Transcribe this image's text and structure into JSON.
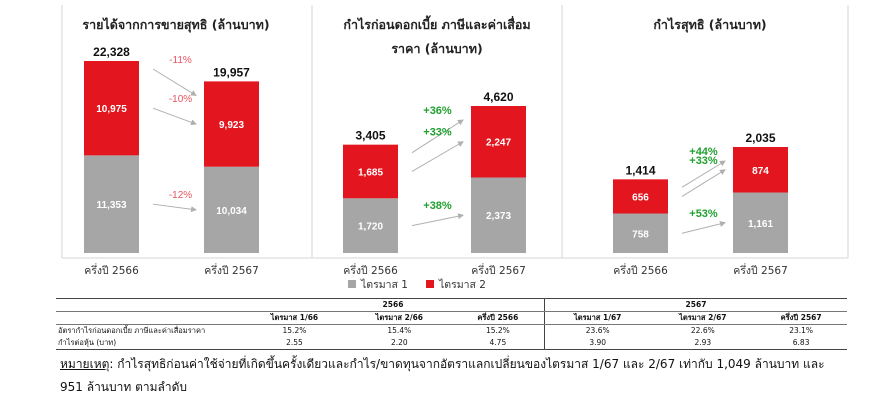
{
  "chart_data": [
    {
      "type": "bar",
      "stacked": true,
      "title": "รายได้จากการขายสุทธิ (ล้านบาท)",
      "categories": [
        "ครึ่งปี 2566",
        "ครึ่งปี 2567"
      ],
      "series": [
        {
          "name": "ไตรมาส 1",
          "values": [
            11353,
            10034
          ]
        },
        {
          "name": "ไตรมาส 2",
          "values": [
            10975,
            9923
          ]
        }
      ],
      "totals": [
        22328,
        19957
      ],
      "totals_labels": [
        "22,328",
        "19,957"
      ],
      "segment_labels": [
        [
          "11,353",
          "10,975"
        ],
        [
          "10,034",
          "9,923"
        ]
      ],
      "growth_labels": {
        "total": "-11%",
        "q2": "-10%",
        "q1": "-12%"
      },
      "ylim": [
        0,
        22328
      ]
    },
    {
      "type": "bar",
      "stacked": true,
      "title": "กำไรก่อนดอกเบี้ย ภาษีและค่าเสื่อมราคา (ล้านบาท)",
      "title_lines": [
        "กำไรก่อนดอกเบี้ย ภาษีและค่าเสื่อม",
        "ราคา (ล้านบาท)"
      ],
      "categories": [
        "ครึ่งปี 2566",
        "ครึ่งปี 2567"
      ],
      "series": [
        {
          "name": "ไตรมาส 1",
          "values": [
            1720,
            2373
          ]
        },
        {
          "name": "ไตรมาส 2",
          "values": [
            1685,
            2247
          ]
        }
      ],
      "totals": [
        3405,
        4620
      ],
      "totals_labels": [
        "3,405",
        "4,620"
      ],
      "segment_labels": [
        [
          "1,720",
          "1,685"
        ],
        [
          "2,373",
          "2,247"
        ]
      ],
      "growth_labels": {
        "total": "+36%",
        "q2": "+33%",
        "q1": "+38%"
      },
      "ylim": [
        0,
        4620
      ]
    },
    {
      "type": "bar",
      "stacked": true,
      "title": "กำไรสุทธิ (ล้านบาท)",
      "categories": [
        "ครึ่งปี 2566",
        "ครึ่งปี 2567"
      ],
      "series": [
        {
          "name": "ไตรมาส 1",
          "values": [
            758,
            1161
          ]
        },
        {
          "name": "ไตรมาส 2",
          "values": [
            656,
            874
          ]
        }
      ],
      "totals": [
        1414,
        2035
      ],
      "totals_labels": [
        "1,414",
        "2,035"
      ],
      "segment_labels": [
        [
          "758",
          "656"
        ],
        [
          "1,161",
          "874"
        ]
      ],
      "growth_labels": {
        "total": "+44%",
        "q2": "+33%",
        "q1": "+53%"
      },
      "ylim": [
        0,
        2035
      ]
    }
  ],
  "legend": [
    {
      "label": "ไตรมาส 1",
      "color": "#a6a6a6"
    },
    {
      "label": "ไตรมาส 2",
      "color": "#e3161f"
    }
  ],
  "colors": {
    "q1": "#a6a6a6",
    "q2": "#e3161f",
    "positive": "#1fa02f",
    "negative": "#e8545e",
    "arrow": "#b0b0b0"
  },
  "table": {
    "year_2566": "2566",
    "year_2567": "2567",
    "headers": [
      "ไตรมาส 1/66",
      "ไตรมาส 2/66",
      "ครึ่งปี 2566",
      "ไตรมาส 1/67",
      "ไตรมาส 2/67",
      "ครึ่งปี 2567"
    ],
    "rows": [
      {
        "label": "อัตรากำไรก่อนดอกเบี้ย ภาษีและค่าเสื่อมราคา",
        "values": [
          "15.2%",
          "15.4%",
          "15.2%",
          "23.6%",
          "22.6%",
          "23.1%"
        ]
      },
      {
        "label": "กำไรต่อหุ้น (บาท)",
        "values": [
          "2.55",
          "2.20",
          "4.75",
          "3.90",
          "2.93",
          "6.83"
        ]
      }
    ]
  },
  "footnote": {
    "label": "หมายเหตุ",
    "text": ": กำไรสุทธิก่อนค่าใช้จ่ายที่เกิดขึ้นครั้งเดียวและกำไร/ขาดทุนจากอัตราแลกเปลี่ยนของไตรมาส 1/67 และ 2/67 เท่ากับ 1,049 ล้านบาท และ 951 ล้านบาท ตามลำดับ"
  }
}
